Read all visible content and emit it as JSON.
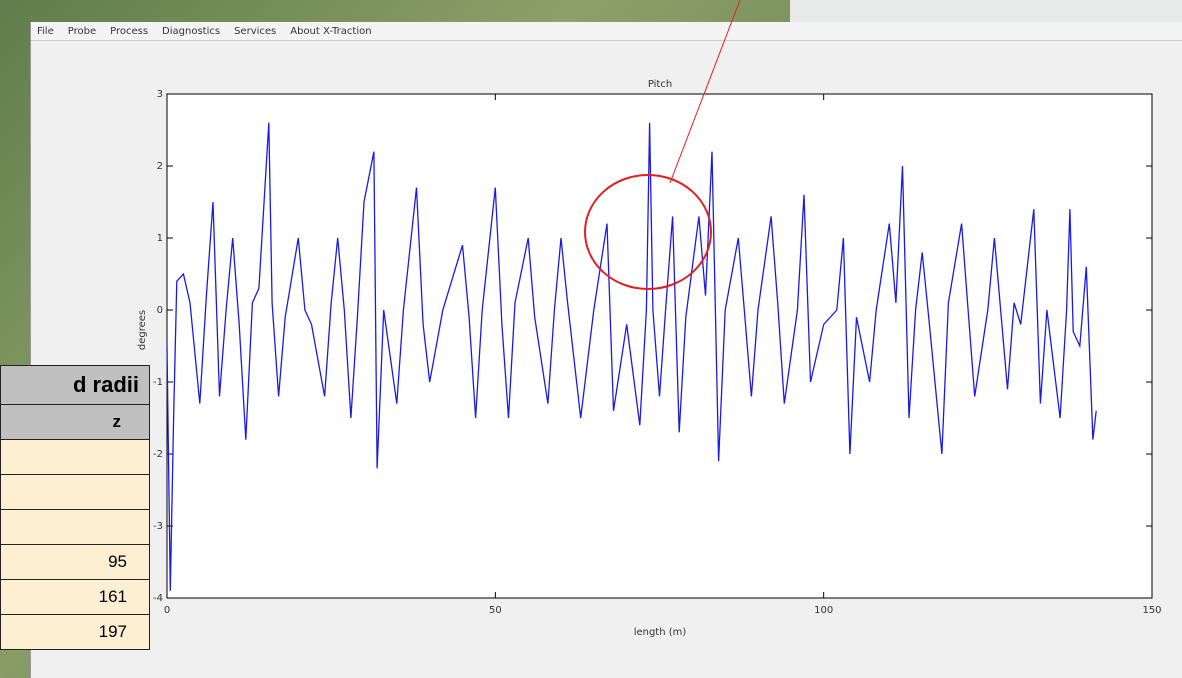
{
  "menu": [
    "File",
    "Probe",
    "Process",
    "Diagnostics",
    "Services",
    "About X-Traction"
  ],
  "chart_data": {
    "type": "line",
    "title": "Pitch",
    "x_label": "length (m)",
    "y_label": "degrees",
    "x": [
      0,
      0.5,
      1,
      1.5,
      2.5,
      3.5,
      5,
      6,
      7,
      8,
      9,
      10,
      11,
      12,
      13,
      14,
      15.5,
      16,
      17,
      18,
      20,
      21,
      22,
      24,
      25,
      26,
      27,
      28,
      29,
      30,
      31.5,
      32,
      33,
      35,
      36,
      38,
      39,
      40,
      42,
      45,
      46,
      47,
      48,
      50,
      51,
      52,
      53,
      55,
      56,
      58,
      59,
      60,
      61,
      63,
      65,
      67,
      68,
      70,
      72,
      73,
      73.5,
      74,
      75,
      76,
      77,
      78,
      79,
      81,
      82,
      83,
      84,
      85,
      87,
      88,
      89,
      90,
      92,
      93,
      94,
      96,
      97,
      98,
      100,
      102,
      103,
      104,
      105,
      107,
      108,
      110,
      111,
      112,
      113,
      114,
      115,
      116,
      118,
      119,
      121,
      122,
      123,
      125,
      126,
      128,
      129,
      130,
      132,
      133,
      134,
      136,
      137,
      137.5,
      138,
      139,
      140,
      141,
      141.5
    ],
    "series": [
      {
        "color": "#1a1ae6",
        "values": [
          -0.5,
          -3.9,
          -1.5,
          0.4,
          0.5,
          0.1,
          -1.3,
          0.2,
          1.5,
          -1.2,
          0,
          1.0,
          -0.2,
          -1.8,
          0.1,
          0.3,
          2.6,
          0.1,
          -1.2,
          -0.1,
          1.0,
          0,
          -0.2,
          -1.2,
          0.1,
          1.0,
          0,
          -1.5,
          -0.1,
          1.5,
          2.2,
          -2.2,
          0,
          -1.3,
          0,
          1.7,
          -0.2,
          -1.0,
          0,
          0.9,
          -0.1,
          -1.5,
          0,
          1.7,
          -0.2,
          -1.5,
          0.1,
          1.0,
          -0.1,
          -1.3,
          0,
          1.0,
          0.1,
          -1.5,
          0,
          1.2,
          -1.4,
          -0.2,
          -1.6,
          0,
          2.6,
          0,
          -1.2,
          0.1,
          1.3,
          -1.7,
          -0.1,
          1.3,
          0.2,
          2.2,
          -2.1,
          0,
          1.0,
          -0.1,
          -1.2,
          0,
          1.3,
          0.1,
          -1.3,
          0,
          1.6,
          -1.0,
          -0.2,
          0,
          1.0,
          -2.0,
          -0.1,
          -1.0,
          0,
          1.2,
          0.1,
          2.0,
          -1.5,
          0,
          0.8,
          -0.1,
          -2.0,
          0.1,
          1.2,
          0,
          -1.2,
          0,
          1.0,
          -1.1,
          0.1,
          -0.2,
          1.4,
          -1.3,
          0,
          -1.5,
          0,
          1.4,
          -0.3,
          -0.5,
          0.6,
          -1.8,
          -1.4
        ]
      }
    ],
    "xlim": [
      0,
      150
    ],
    "xticks": [
      0,
      50,
      100,
      150
    ],
    "ylim": [
      -4,
      3
    ],
    "yticks": [
      -4,
      -3,
      -2,
      -1,
      0,
      1,
      2,
      3
    ]
  },
  "table": {
    "header": "d radii",
    "column": "z",
    "rows": [
      95,
      161,
      197
    ]
  }
}
